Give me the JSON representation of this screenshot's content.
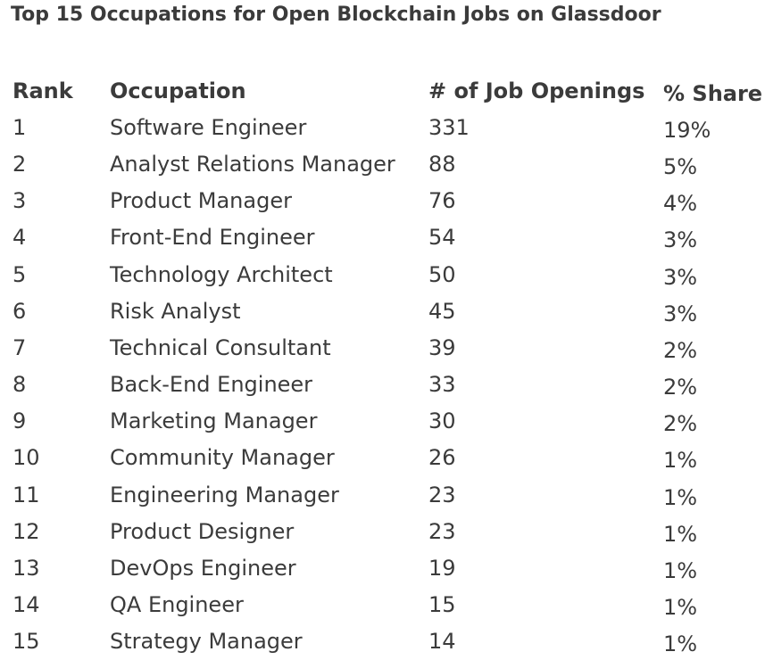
{
  "title": "Top 15 Occupations for Open Blockchain Jobs on Glassdoor",
  "headers": {
    "rank": "Rank",
    "occupation": "Occupation",
    "openings": "# of Job Openings",
    "share": "% Share"
  },
  "rows": [
    {
      "rank": "1",
      "occupation": "Software Engineer",
      "openings": "331",
      "share": "19%"
    },
    {
      "rank": "2",
      "occupation": "Analyst Relations Manager",
      "openings": "88",
      "share": "5%"
    },
    {
      "rank": "3",
      "occupation": "Product Manager",
      "openings": "76",
      "share": "4%"
    },
    {
      "rank": "4",
      "occupation": "Front-End Engineer",
      "openings": "54",
      "share": "3%"
    },
    {
      "rank": "5",
      "occupation": "Technology Architect",
      "openings": "50",
      "share": "3%"
    },
    {
      "rank": "6",
      "occupation": "Risk Analyst",
      "openings": "45",
      "share": "3%"
    },
    {
      "rank": "7",
      "occupation": "Technical Consultant",
      "openings": "39",
      "share": "2%"
    },
    {
      "rank": "8",
      "occupation": "Back-End Engineer",
      "openings": "33",
      "share": "2%"
    },
    {
      "rank": "9",
      "occupation": "Marketing Manager",
      "openings": "30",
      "share": "2%"
    },
    {
      "rank": "10",
      "occupation": "Community Manager",
      "openings": "26",
      "share": "1%"
    },
    {
      "rank": "11",
      "occupation": "Engineering Manager",
      "openings": "23",
      "share": "1%"
    },
    {
      "rank": "12",
      "occupation": "Product Designer",
      "openings": "23",
      "share": "1%"
    },
    {
      "rank": "13",
      "occupation": "DevOps Engineer",
      "openings": "19",
      "share": "1%"
    },
    {
      "rank": "14",
      "occupation": "QA Engineer",
      "openings": "15",
      "share": "1%"
    },
    {
      "rank": "15",
      "occupation": "Strategy Manager",
      "openings": "14",
      "share": "1%"
    }
  ]
}
